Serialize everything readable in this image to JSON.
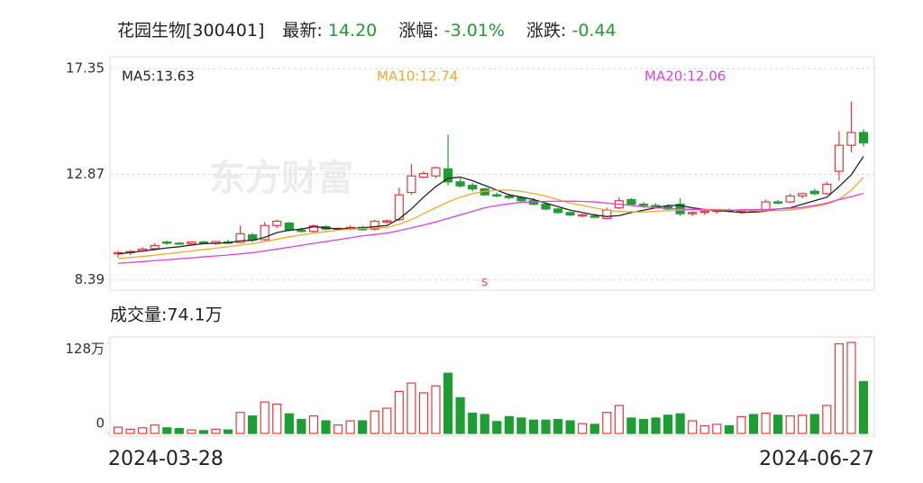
{
  "header": {
    "name": "花园生物[300401]",
    "latest_label": "最新:",
    "latest": "14.20",
    "pct_label": "涨幅:",
    "pct": "-3.01%",
    "chg_label": "涨跌:",
    "chg": "-0.44"
  },
  "chart_data": {
    "type": "candlestick",
    "categories": [
      "2024-03-28",
      null,
      null,
      null,
      null,
      null,
      null,
      null,
      null,
      null,
      null,
      null,
      null,
      null,
      null,
      null,
      null,
      null,
      null,
      null,
      null,
      null,
      null,
      null,
      null,
      null,
      null,
      null,
      null,
      null,
      null,
      null,
      null,
      null,
      null,
      null,
      null,
      null,
      null,
      null,
      null,
      null,
      null,
      null,
      null,
      null,
      null,
      null,
      null,
      null,
      null,
      null,
      null,
      null,
      null,
      null,
      null,
      null,
      null,
      null,
      null,
      "2024-06-27"
    ],
    "open": [
      9.5,
      9.55,
      9.62,
      9.72,
      10.0,
      9.95,
      9.92,
      10.0,
      9.94,
      10.0,
      9.98,
      10.3,
      10.1,
      10.7,
      10.8,
      10.5,
      10.45,
      10.65,
      10.55,
      10.58,
      10.62,
      10.55,
      10.85,
      10.95,
      12.1,
      12.75,
      12.8,
      13.1,
      12.55,
      12.4,
      12.25,
      12.0,
      11.95,
      11.88,
      11.75,
      11.6,
      11.4,
      11.25,
      11.1,
      11.1,
      11.0,
      11.45,
      11.8,
      11.6,
      11.55,
      11.5,
      11.6,
      11.2,
      11.25,
      11.3,
      11.35,
      11.3,
      11.32,
      11.35,
      11.7,
      11.7,
      11.95,
      12.15,
      12.05,
      13.0,
      14.1,
      14.64
    ],
    "high": [
      9.62,
      9.65,
      9.78,
      9.95,
      10.05,
      10.0,
      10.02,
      10.05,
      10.05,
      10.1,
      10.7,
      10.38,
      10.85,
      10.95,
      10.85,
      10.6,
      10.75,
      10.7,
      10.62,
      10.7,
      10.68,
      10.95,
      10.95,
      12.3,
      13.3,
      13.0,
      13.2,
      14.55,
      12.7,
      12.5,
      12.3,
      12.1,
      12.05,
      11.95,
      11.85,
      11.65,
      11.45,
      11.3,
      11.2,
      11.2,
      11.45,
      11.9,
      11.85,
      11.7,
      11.65,
      11.6,
      11.85,
      11.3,
      11.35,
      11.4,
      11.42,
      11.4,
      11.4,
      11.8,
      11.78,
      12.05,
      12.1,
      12.25,
      12.55,
      14.7,
      15.95,
      14.78
    ],
    "low": [
      9.35,
      9.45,
      9.58,
      9.68,
      9.88,
      9.88,
      9.86,
      9.9,
      9.88,
      9.92,
      9.95,
      10.0,
      10.05,
      10.6,
      10.45,
      10.4,
      10.4,
      10.5,
      10.48,
      10.5,
      10.48,
      10.5,
      10.78,
      10.9,
      12.0,
      12.7,
      12.7,
      12.4,
      12.3,
      12.15,
      11.95,
      11.9,
      11.8,
      11.7,
      11.55,
      11.35,
      11.2,
      11.1,
      11.05,
      11.0,
      10.95,
      11.4,
      11.55,
      11.45,
      11.45,
      11.35,
      11.1,
      11.1,
      11.15,
      11.2,
      11.25,
      11.2,
      11.25,
      11.3,
      11.6,
      11.65,
      11.85,
      11.98,
      12.0,
      12.6,
      13.8,
      14.05
    ],
    "close": [
      9.55,
      9.6,
      9.7,
      9.85,
      9.95,
      9.92,
      10.0,
      9.94,
      10.02,
      9.95,
      10.35,
      10.08,
      10.7,
      10.88,
      10.5,
      10.45,
      10.68,
      10.55,
      10.58,
      10.62,
      10.52,
      10.88,
      10.9,
      12.0,
      12.8,
      12.9,
      13.15,
      12.55,
      12.38,
      12.25,
      12.0,
      11.95,
      11.88,
      11.75,
      11.6,
      11.4,
      11.25,
      11.15,
      11.15,
      11.05,
      11.35,
      11.75,
      11.6,
      11.55,
      11.5,
      11.4,
      11.2,
      11.25,
      11.3,
      11.35,
      11.3,
      11.32,
      11.3,
      11.7,
      11.65,
      11.95,
      12.05,
      12.05,
      12.45,
      14.1,
      14.64,
      14.2
    ],
    "up_color": "#e8383d",
    "down_color": "#1e9e32",
    "ylim": [
      7.96,
      17.85
    ],
    "yticks": [
      8.39,
      12.87,
      17.35
    ],
    "grid": true,
    "watermark": "东方财富",
    "annotation": {
      "text": "S",
      "index": 30,
      "color": "#e8383d"
    },
    "series": [
      {
        "name": "MA5",
        "label": "MA5:13.63",
        "color": "#222222",
        "values": [
          9.5,
          9.55,
          9.62,
          9.68,
          9.75,
          9.8,
          9.87,
          9.93,
          9.95,
          9.97,
          10.05,
          10.07,
          10.2,
          10.4,
          10.5,
          10.55,
          10.65,
          10.6,
          10.55,
          10.58,
          10.6,
          10.65,
          10.7,
          10.98,
          11.4,
          11.9,
          12.35,
          12.7,
          12.75,
          12.6,
          12.4,
          12.2,
          12.0,
          11.9,
          11.8,
          11.65,
          11.5,
          11.35,
          11.25,
          11.15,
          11.08,
          11.12,
          11.25,
          11.35,
          11.45,
          11.55,
          11.55,
          11.45,
          11.38,
          11.33,
          11.3,
          11.25,
          11.27,
          11.3,
          11.4,
          11.45,
          11.6,
          11.75,
          11.9,
          12.35,
          12.85,
          13.63
        ]
      },
      {
        "name": "MA10",
        "label": "MA10:12.74",
        "color": "#f0a830",
        "values": [
          9.3,
          9.34,
          9.39,
          9.44,
          9.5,
          9.56,
          9.62,
          9.68,
          9.74,
          9.8,
          9.87,
          9.93,
          10.02,
          10.12,
          10.22,
          10.3,
          10.38,
          10.44,
          10.5,
          10.55,
          10.57,
          10.6,
          10.62,
          10.75,
          10.95,
          11.2,
          11.45,
          11.7,
          11.9,
          12.05,
          12.15,
          12.2,
          12.2,
          12.15,
          12.05,
          11.95,
          11.8,
          11.65,
          11.55,
          11.45,
          11.35,
          11.3,
          11.28,
          11.27,
          11.3,
          11.33,
          11.35,
          11.38,
          11.38,
          11.38,
          11.36,
          11.34,
          11.32,
          11.32,
          11.33,
          11.36,
          11.42,
          11.5,
          11.6,
          11.8,
          12.2,
          12.74
        ]
      },
      {
        "name": "MA20",
        "label": "MA20:12.06",
        "color": "#e040e0",
        "values": [
          9.1,
          9.13,
          9.17,
          9.21,
          9.25,
          9.29,
          9.33,
          9.37,
          9.41,
          9.45,
          9.5,
          9.55,
          9.62,
          9.7,
          9.78,
          9.86,
          9.94,
          10.02,
          10.1,
          10.18,
          10.26,
          10.32,
          10.38,
          10.48,
          10.6,
          10.72,
          10.85,
          11.0,
          11.15,
          11.3,
          11.45,
          11.55,
          11.62,
          11.68,
          11.7,
          11.72,
          11.73,
          11.73,
          11.72,
          11.7,
          11.65,
          11.6,
          11.55,
          11.5,
          11.45,
          11.42,
          11.4,
          11.38,
          11.36,
          11.35,
          11.35,
          11.36,
          11.37,
          11.38,
          11.4,
          11.43,
          11.47,
          11.55,
          11.65,
          11.8,
          11.92,
          12.06
        ]
      }
    ]
  },
  "volume_chart": {
    "type": "bar",
    "title": "成交量:74.1万",
    "values": [
      9,
      6,
      8,
      12,
      8,
      7,
      5,
      4,
      6,
      5,
      30,
      25,
      45,
      42,
      28,
      20,
      25,
      18,
      12,
      18,
      18,
      32,
      36,
      60,
      72,
      58,
      68,
      86,
      51,
      29,
      27,
      17,
      24,
      22,
      19,
      19,
      20,
      18,
      14,
      13,
      30,
      40,
      22,
      20,
      22,
      26,
      28,
      18,
      11,
      13,
      11,
      24,
      27,
      29,
      26,
      25,
      26,
      27,
      40,
      128,
      130,
      74.1
    ],
    "ylim": [
      0,
      130
    ],
    "yticks": [
      {
        "value": 0,
        "label": "0"
      },
      {
        "value": 128,
        "label": "128万"
      }
    ]
  }
}
